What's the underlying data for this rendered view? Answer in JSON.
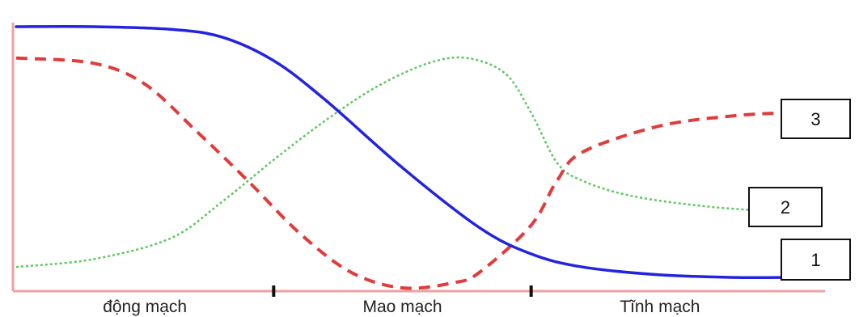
{
  "chart_data": {
    "type": "line",
    "x_range": [
      0,
      3
    ],
    "y_range": [
      0,
      1
    ],
    "grid": false,
    "segments": [
      "động mạch",
      "Mao mạch",
      "Tĩnh mạch"
    ],
    "segment_boundaries": [
      1,
      2
    ],
    "series": [
      {
        "name": "1",
        "color": "#2323e0",
        "style": "solid",
        "x": [
          0,
          0.3,
          0.6,
          0.8,
          1.0,
          1.2,
          1.5,
          1.8,
          2.0,
          2.2,
          2.5,
          2.8,
          3.0
        ],
        "values": [
          1.0,
          1.0,
          0.99,
          0.96,
          0.87,
          0.72,
          0.46,
          0.23,
          0.13,
          0.08,
          0.05,
          0.04,
          0.04
        ]
      },
      {
        "name": "2",
        "color": "#5cc95c",
        "style": "dotted",
        "x": [
          0,
          0.3,
          0.6,
          0.8,
          1.0,
          1.2,
          1.4,
          1.6,
          1.75,
          1.9,
          2.0,
          2.1,
          2.2,
          2.4,
          2.7,
          3.0
        ],
        "values": [
          0.08,
          0.11,
          0.19,
          0.33,
          0.49,
          0.64,
          0.77,
          0.86,
          0.88,
          0.82,
          0.67,
          0.48,
          0.41,
          0.35,
          0.31,
          0.29
        ]
      },
      {
        "name": "3",
        "color": "#e23b3b",
        "style": "dashed",
        "x": [
          0,
          0.3,
          0.5,
          0.7,
          0.9,
          1.1,
          1.3,
          1.5,
          1.7,
          1.8,
          2.0,
          2.1,
          2.2,
          2.5,
          2.8,
          3.0
        ],
        "values": [
          0.88,
          0.86,
          0.78,
          0.6,
          0.41,
          0.21,
          0.06,
          0.0,
          0.02,
          0.06,
          0.24,
          0.41,
          0.52,
          0.62,
          0.66,
          0.67
        ]
      }
    ]
  }
}
